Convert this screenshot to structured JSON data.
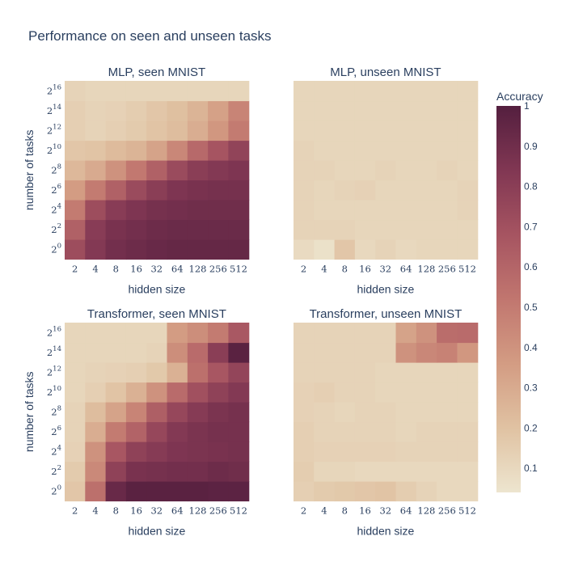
{
  "chart_data": {
    "type": "heatmap",
    "title": "Performance on seen and unseen tasks",
    "xlabel": "hidden size",
    "ylabel": "number of tasks",
    "x_ticks": [
      "2",
      "4",
      "8",
      "16",
      "32",
      "64",
      "128",
      "256",
      "512"
    ],
    "y_ticks": [
      {
        "base": "2",
        "exp": "0"
      },
      {
        "base": "2",
        "exp": "2"
      },
      {
        "base": "2",
        "exp": "4"
      },
      {
        "base": "2",
        "exp": "6"
      },
      {
        "base": "2",
        "exp": "8"
      },
      {
        "base": "2",
        "exp": "10"
      },
      {
        "base": "2",
        "exp": "12"
      },
      {
        "base": "2",
        "exp": "14"
      },
      {
        "base": "2",
        "exp": "16"
      }
    ],
    "colorbar": {
      "title": "Accuracy",
      "range": [
        0.04,
        1.0
      ],
      "ticks": [
        "0.1",
        "0.2",
        "0.3",
        "0.4",
        "0.5",
        "0.6",
        "0.7",
        "0.8",
        "0.9",
        "1"
      ],
      "tick_values": [
        0.1,
        0.2,
        0.3,
        0.4,
        0.5,
        0.6,
        0.7,
        0.8,
        0.9,
        1.0
      ],
      "colorscale": [
        [
          0.0,
          "#ede5cf"
        ],
        [
          0.1666,
          "#e0c2a2"
        ],
        [
          0.3333,
          "#d39c83"
        ],
        [
          0.5,
          "#c1766f"
        ],
        [
          0.6666,
          "#a65461"
        ],
        [
          0.8333,
          "#813753"
        ],
        [
          1.0,
          "#541f3f"
        ]
      ]
    },
    "panels": [
      {
        "title": "MLP, seen MNIST",
        "values": [
          [
            0.72,
            0.83,
            0.89,
            0.91,
            0.93,
            0.94,
            0.94,
            0.94,
            0.94
          ],
          [
            0.62,
            0.81,
            0.87,
            0.89,
            0.91,
            0.92,
            0.92,
            0.92,
            0.92
          ],
          [
            0.5,
            0.72,
            0.81,
            0.85,
            0.88,
            0.89,
            0.9,
            0.9,
            0.9
          ],
          [
            0.36,
            0.5,
            0.62,
            0.73,
            0.8,
            0.85,
            0.87,
            0.88,
            0.88
          ],
          [
            0.24,
            0.3,
            0.4,
            0.51,
            0.62,
            0.73,
            0.8,
            0.83,
            0.85
          ],
          [
            0.18,
            0.19,
            0.23,
            0.26,
            0.33,
            0.45,
            0.58,
            0.68,
            0.77
          ],
          [
            0.14,
            0.12,
            0.14,
            0.16,
            0.19,
            0.22,
            0.29,
            0.38,
            0.5
          ],
          [
            0.14,
            0.12,
            0.13,
            0.15,
            0.18,
            0.21,
            0.26,
            0.34,
            0.46
          ],
          [
            0.12,
            0.11,
            0.11,
            0.11,
            0.11,
            0.11,
            0.11,
            0.11,
            0.11
          ]
        ]
      },
      {
        "title": "MLP, unseen MNIST",
        "values": [
          [
            0.09,
            0.06,
            0.18,
            0.1,
            0.12,
            0.1,
            0.11,
            0.11,
            0.11
          ],
          [
            0.12,
            0.12,
            0.12,
            0.11,
            0.11,
            0.11,
            0.11,
            0.11,
            0.11
          ],
          [
            0.12,
            0.11,
            0.11,
            0.11,
            0.11,
            0.11,
            0.11,
            0.11,
            0.12
          ],
          [
            0.12,
            0.11,
            0.12,
            0.13,
            0.11,
            0.11,
            0.11,
            0.11,
            0.12
          ],
          [
            0.12,
            0.12,
            0.11,
            0.11,
            0.12,
            0.11,
            0.11,
            0.12,
            0.11
          ],
          [
            0.12,
            0.11,
            0.11,
            0.11,
            0.11,
            0.11,
            0.11,
            0.11,
            0.11
          ],
          [
            0.11,
            0.11,
            0.11,
            0.11,
            0.11,
            0.11,
            0.11,
            0.11,
            0.11
          ],
          [
            0.11,
            0.11,
            0.11,
            0.11,
            0.11,
            0.11,
            0.11,
            0.11,
            0.11
          ],
          [
            0.11,
            0.11,
            0.11,
            0.11,
            0.11,
            0.11,
            0.11,
            0.11,
            0.11
          ]
        ]
      },
      {
        "title": "Transformer, seen MNIST",
        "values": [
          [
            0.18,
            0.55,
            0.93,
            0.98,
            0.98,
            0.98,
            0.98,
            0.97,
            0.97
          ],
          [
            0.16,
            0.44,
            0.78,
            0.87,
            0.88,
            0.89,
            0.89,
            0.91,
            0.9
          ],
          [
            0.13,
            0.4,
            0.67,
            0.78,
            0.82,
            0.85,
            0.86,
            0.87,
            0.88
          ],
          [
            0.12,
            0.29,
            0.5,
            0.61,
            0.75,
            0.83,
            0.86,
            0.88,
            0.88
          ],
          [
            0.12,
            0.22,
            0.33,
            0.46,
            0.63,
            0.75,
            0.82,
            0.86,
            0.88
          ],
          [
            0.11,
            0.14,
            0.19,
            0.27,
            0.4,
            0.57,
            0.7,
            0.78,
            0.83
          ],
          [
            0.11,
            0.12,
            0.13,
            0.14,
            0.17,
            0.27,
            0.55,
            0.67,
            0.76
          ],
          [
            0.11,
            0.11,
            0.11,
            0.11,
            0.12,
            0.42,
            0.57,
            0.8,
            0.98
          ],
          [
            0.11,
            0.11,
            0.11,
            0.11,
            0.11,
            0.36,
            0.42,
            0.5,
            0.66
          ]
        ]
      },
      {
        "title": "Transformer, unseen MNIST",
        "values": [
          [
            0.14,
            0.16,
            0.17,
            0.18,
            0.19,
            0.15,
            0.12,
            0.1,
            0.1
          ],
          [
            0.15,
            0.11,
            0.11,
            0.1,
            0.1,
            0.1,
            0.1,
            0.1,
            0.1
          ],
          [
            0.14,
            0.13,
            0.13,
            0.13,
            0.13,
            0.12,
            0.12,
            0.12,
            0.12
          ],
          [
            0.14,
            0.12,
            0.12,
            0.12,
            0.12,
            0.11,
            0.12,
            0.12,
            0.12
          ],
          [
            0.13,
            0.12,
            0.11,
            0.12,
            0.12,
            0.11,
            0.11,
            0.11,
            0.11
          ],
          [
            0.13,
            0.14,
            0.12,
            0.12,
            0.11,
            0.11,
            0.11,
            0.11,
            0.11
          ],
          [
            0.12,
            0.12,
            0.12,
            0.12,
            0.11,
            0.11,
            0.11,
            0.11,
            0.11
          ],
          [
            0.12,
            0.12,
            0.12,
            0.12,
            0.12,
            0.4,
            0.45,
            0.47,
            0.38
          ],
          [
            0.12,
            0.12,
            0.12,
            0.12,
            0.12,
            0.33,
            0.4,
            0.56,
            0.57
          ]
        ]
      }
    ]
  }
}
